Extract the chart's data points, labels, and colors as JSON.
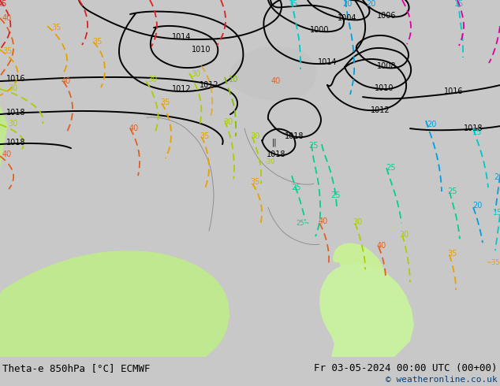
{
  "title_left": "Theta-e 850hPa [°C] ECMWF",
  "title_right": "Fr 03-05-2024 00:00 UTC (00+00)",
  "copyright": "© weatheronline.co.uk",
  "bg_color": "#c8c8c8",
  "fig_width": 6.34,
  "fig_height": 4.9,
  "dpi": 100,
  "title_font_size": 9,
  "copyright_font_size": 8,
  "land_green": "#c8f0a0",
  "sea_gray": "#c0c0c0",
  "pressure_color": "#000000",
  "theta_colors": {
    "10": "#80c000",
    "15": "#00c8c8",
    "20": "#00a0e0",
    "25": "#00d090",
    "30": "#a8d000",
    "35": "#e8a000",
    "40": "#e06020",
    "45": "#e02020",
    "50": "#e000a0"
  }
}
